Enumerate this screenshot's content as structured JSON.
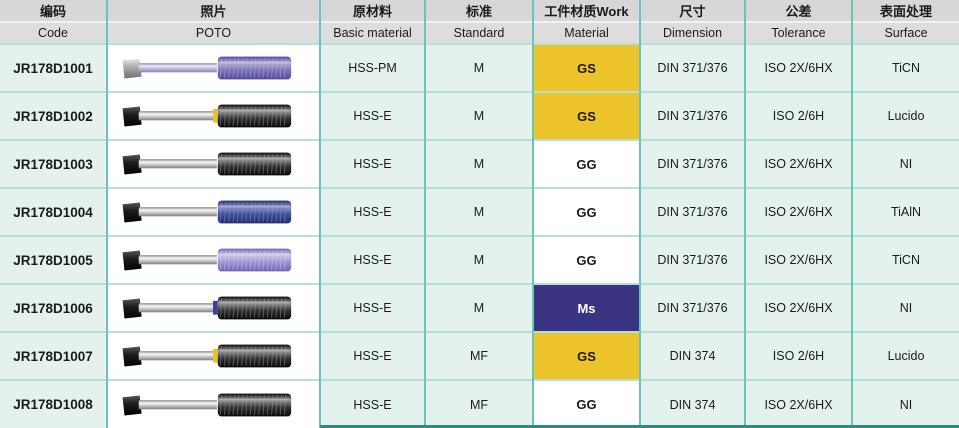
{
  "table": {
    "columns": [
      {
        "id": "code",
        "zh": "编码",
        "en": "Code"
      },
      {
        "id": "photo",
        "zh": "照片",
        "en": "POTO"
      },
      {
        "id": "basic_material",
        "zh": "原材料",
        "en": "Basic material"
      },
      {
        "id": "standard",
        "zh": "标准",
        "en": "Standard"
      },
      {
        "id": "work_material",
        "zh": "工件材质Work",
        "en": "Material"
      },
      {
        "id": "dimension",
        "zh": "尺寸",
        "en": "Dimension"
      },
      {
        "id": "tolerance",
        "zh": "公差",
        "en": "Tolerance"
      },
      {
        "id": "surface",
        "zh": "表面处理",
        "en": "Surface"
      }
    ],
    "rows": [
      {
        "code": "JR178D1001",
        "basic_material": "HSS-PM",
        "standard": "M",
        "work_material": {
          "label": "GS",
          "bg": "#edc32a",
          "fg": "#1a1a1a"
        },
        "dimension": "DIN 371/376",
        "tolerance": "ISO 2X/6HX",
        "surface": "TiCN",
        "photo": {
          "shank": "steel",
          "shaft": "purple_shaft",
          "thread": "purple_thread",
          "ring": null
        }
      },
      {
        "code": "JR178D1002",
        "basic_material": "HSS-E",
        "standard": "M",
        "work_material": {
          "label": "GS",
          "bg": "#edc32a",
          "fg": "#1a1a1a"
        },
        "dimension": "DIN 371/376",
        "tolerance": "ISO 2/6H",
        "surface": "Lucido",
        "photo": {
          "shank": "black",
          "shaft": "steel_shaft",
          "thread": "black_thread",
          "ring": "#e8c41e"
        }
      },
      {
        "code": "JR178D1003",
        "basic_material": "HSS-E",
        "standard": "M",
        "work_material": {
          "label": "GG",
          "bg": "#ffffff",
          "fg": "#1a1a1a"
        },
        "dimension": "DIN 371/376",
        "tolerance": "ISO 2X/6HX",
        "surface": "NI",
        "photo": {
          "shank": "black",
          "shaft": "steel_shaft",
          "thread": "black_thread",
          "ring": null
        }
      },
      {
        "code": "JR178D1004",
        "basic_material": "HSS-E",
        "standard": "M",
        "work_material": {
          "label": "GG",
          "bg": "#ffffff",
          "fg": "#1a1a1a"
        },
        "dimension": "DIN 371/376",
        "tolerance": "ISO 2X/6HX",
        "surface": "TiAlN",
        "photo": {
          "shank": "black",
          "shaft": "steel_shaft",
          "thread": "blue_thread",
          "ring": null
        }
      },
      {
        "code": "JR178D1005",
        "basic_material": "HSS-E",
        "standard": "M",
        "work_material": {
          "label": "GG",
          "bg": "#ffffff",
          "fg": "#1a1a1a"
        },
        "dimension": "DIN 371/376",
        "tolerance": "ISO 2X/6HX",
        "surface": "TiCN",
        "photo": {
          "shank": "black",
          "shaft": "steel_shaft",
          "thread": "violet_thread",
          "ring": null
        }
      },
      {
        "code": "JR178D1006",
        "basic_material": "HSS-E",
        "standard": "M",
        "work_material": {
          "label": "Ms",
          "bg": "#3b3483",
          "fg": "#ffffff"
        },
        "dimension": "DIN 371/376",
        "tolerance": "ISO 2X/6HX",
        "surface": "NI",
        "photo": {
          "shank": "black",
          "shaft": "steel_shaft",
          "thread": "black_thread",
          "ring": "#3c3f9e"
        }
      },
      {
        "code": "JR178D1007",
        "basic_material": "HSS-E",
        "standard": "MF",
        "work_material": {
          "label": "GS",
          "bg": "#edc32a",
          "fg": "#1a1a1a"
        },
        "dimension": "DIN 374",
        "tolerance": "ISO 2/6H",
        "surface": "Lucido",
        "photo": {
          "shank": "black",
          "shaft": "steel_shaft",
          "thread": "black_thread",
          "ring": "#e8c41e"
        }
      },
      {
        "code": "JR178D1008",
        "basic_material": "HSS-E",
        "standard": "MF",
        "work_material": {
          "label": "GG",
          "bg": "#ffffff",
          "fg": "#1a1a1a"
        },
        "dimension": "DIN 374",
        "tolerance": "ISO 2X/6HX",
        "surface": "NI",
        "photo": {
          "shank": "black",
          "shaft": "steel_shaft",
          "thread": "black_thread",
          "ring": null
        }
      }
    ]
  },
  "colors": {
    "vertical_border": "#69c5bb",
    "horizontal_border": "#b6dfd8",
    "header_bg_zh": "#d7d7d7",
    "header_bg_en": "#dddddd",
    "row_bg": "#e4f1ec",
    "photo_cell_bg": "#ffffff",
    "work_gs_bg": "#edc32a",
    "work_ms_bg": "#3b3483",
    "bottom_strip": "#2b8c84",
    "text": "#1a1a1a"
  },
  "tap_palette": {
    "steel_shaft": [
      "#fafafa",
      "#d0d0d0",
      "#7e7e7e"
    ],
    "purple_shaft": [
      "#f0eef9",
      "#c4bede",
      "#8a84b8"
    ],
    "black_thread": [
      "#9a9a9a",
      "#333333",
      "#050505"
    ],
    "purple_thread": [
      "#b4addb",
      "#7d74b8",
      "#4e4794"
    ],
    "blue_thread": [
      "#8d97cc",
      "#3f4f9e",
      "#222c66"
    ],
    "violet_thread": [
      "#cfc8ec",
      "#9c92d4",
      "#6f66b4"
    ],
    "steel_shank": [
      "#e8e8e8",
      "#b0b0b0",
      "#6f6f6f"
    ],
    "black_shank": [
      "#555555",
      "#1e1e1e",
      "#000000"
    ]
  }
}
